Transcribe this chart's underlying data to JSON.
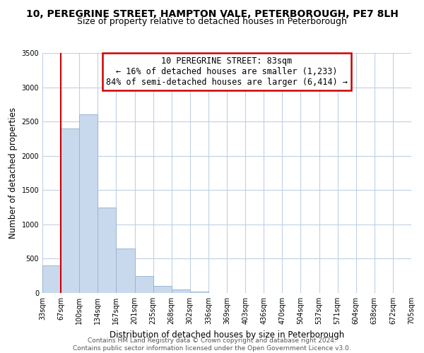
{
  "title": "10, PEREGRINE STREET, HAMPTON VALE, PETERBOROUGH, PE7 8LH",
  "subtitle": "Size of property relative to detached houses in Peterborough",
  "xlabel": "Distribution of detached houses by size in Peterborough",
  "ylabel": "Number of detached properties",
  "bar_values": [
    400,
    2400,
    2600,
    1250,
    650,
    250,
    100,
    50,
    25,
    0,
    0,
    0,
    0,
    0,
    0,
    0,
    0,
    0,
    0,
    0
  ],
  "bar_labels": [
    "33sqm",
    "67sqm",
    "100sqm",
    "134sqm",
    "167sqm",
    "201sqm",
    "235sqm",
    "268sqm",
    "302sqm",
    "336sqm",
    "369sqm",
    "403sqm",
    "436sqm",
    "470sqm",
    "504sqm",
    "537sqm",
    "571sqm",
    "604sqm",
    "638sqm",
    "672sqm",
    "705sqm"
  ],
  "bar_color": "#c9d9ed",
  "bar_edge_color": "#9ab5d4",
  "vline_color": "#cc0000",
  "vline_x": 1.0,
  "ylim": [
    0,
    3500
  ],
  "annotation_text": "10 PEREGRINE STREET: 83sqm\n← 16% of detached houses are smaller (1,233)\n84% of semi-detached houses are larger (6,414) →",
  "annotation_box_facecolor": "#ffffff",
  "annotation_box_edgecolor": "#cc0000",
  "footer_line1": "Contains HM Land Registry data © Crown copyright and database right 2024.",
  "footer_line2": "Contains public sector information licensed under the Open Government Licence v3.0.",
  "background_color": "#ffffff",
  "grid_color": "#c0d0e4",
  "title_fontsize": 10,
  "subtitle_fontsize": 9,
  "ylabel_fontsize": 8.5,
  "xlabel_fontsize": 8.5,
  "tick_fontsize": 7,
  "annotation_fontsize": 8.5,
  "footer_fontsize": 6.5
}
